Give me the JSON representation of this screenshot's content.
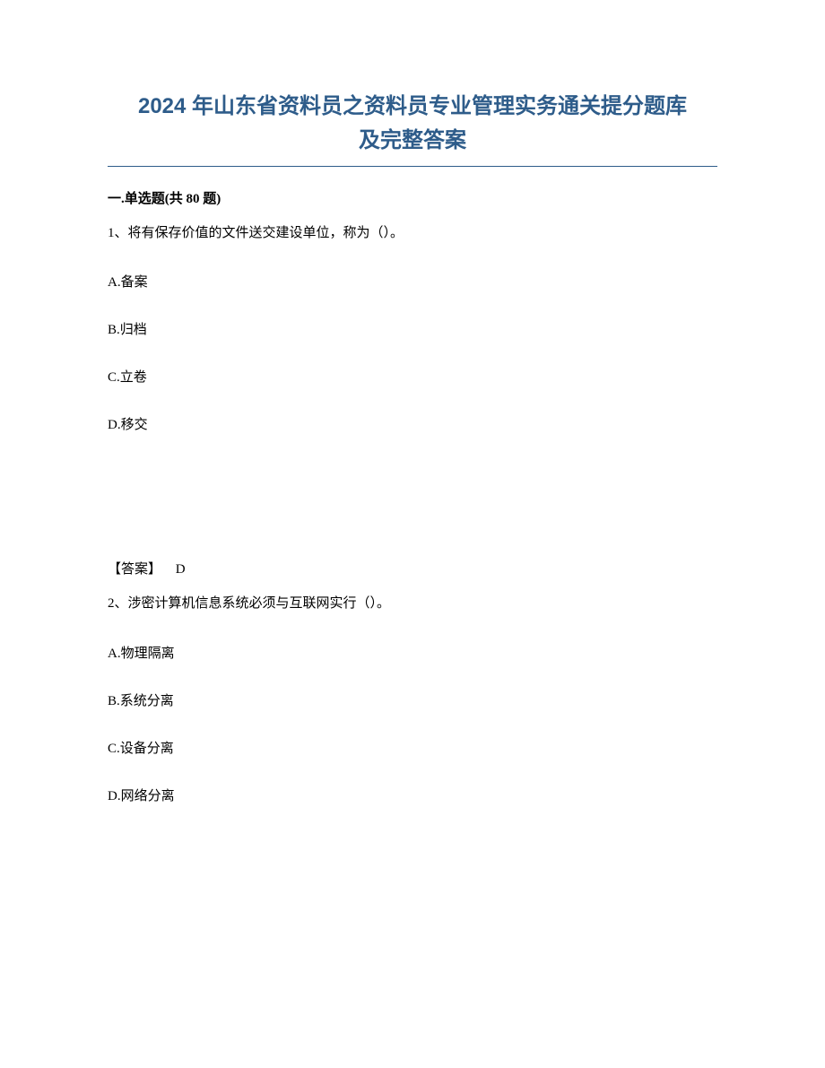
{
  "title_line1": "2024 年山东省资料员之资料员专业管理实务通关提分题库",
  "title_line2": "及完整答案",
  "section_heading": "一.单选题(共 80 题)",
  "q1": {
    "stem": "1、将有保存价值的文件送交建设单位，称为（）。",
    "options": {
      "a": "A.备案",
      "b": "B.归档",
      "c": "C.立卷",
      "d": "D.移交"
    },
    "answer_label": "【答案】",
    "answer_value": "D"
  },
  "q2": {
    "stem": "2、涉密计算机信息系统必须与互联网实行（）。",
    "options": {
      "a": "A.物理隔离",
      "b": "B.系统分离",
      "c": "C.设备分离",
      "d": "D.网络分离"
    }
  },
  "colors": {
    "title_color": "#2e5c8a",
    "text_color": "#000000",
    "background": "#ffffff",
    "underline_color": "#2e5c8a"
  },
  "typography": {
    "title_fontsize": 24,
    "body_fontsize": 15,
    "title_weight": "bold"
  }
}
